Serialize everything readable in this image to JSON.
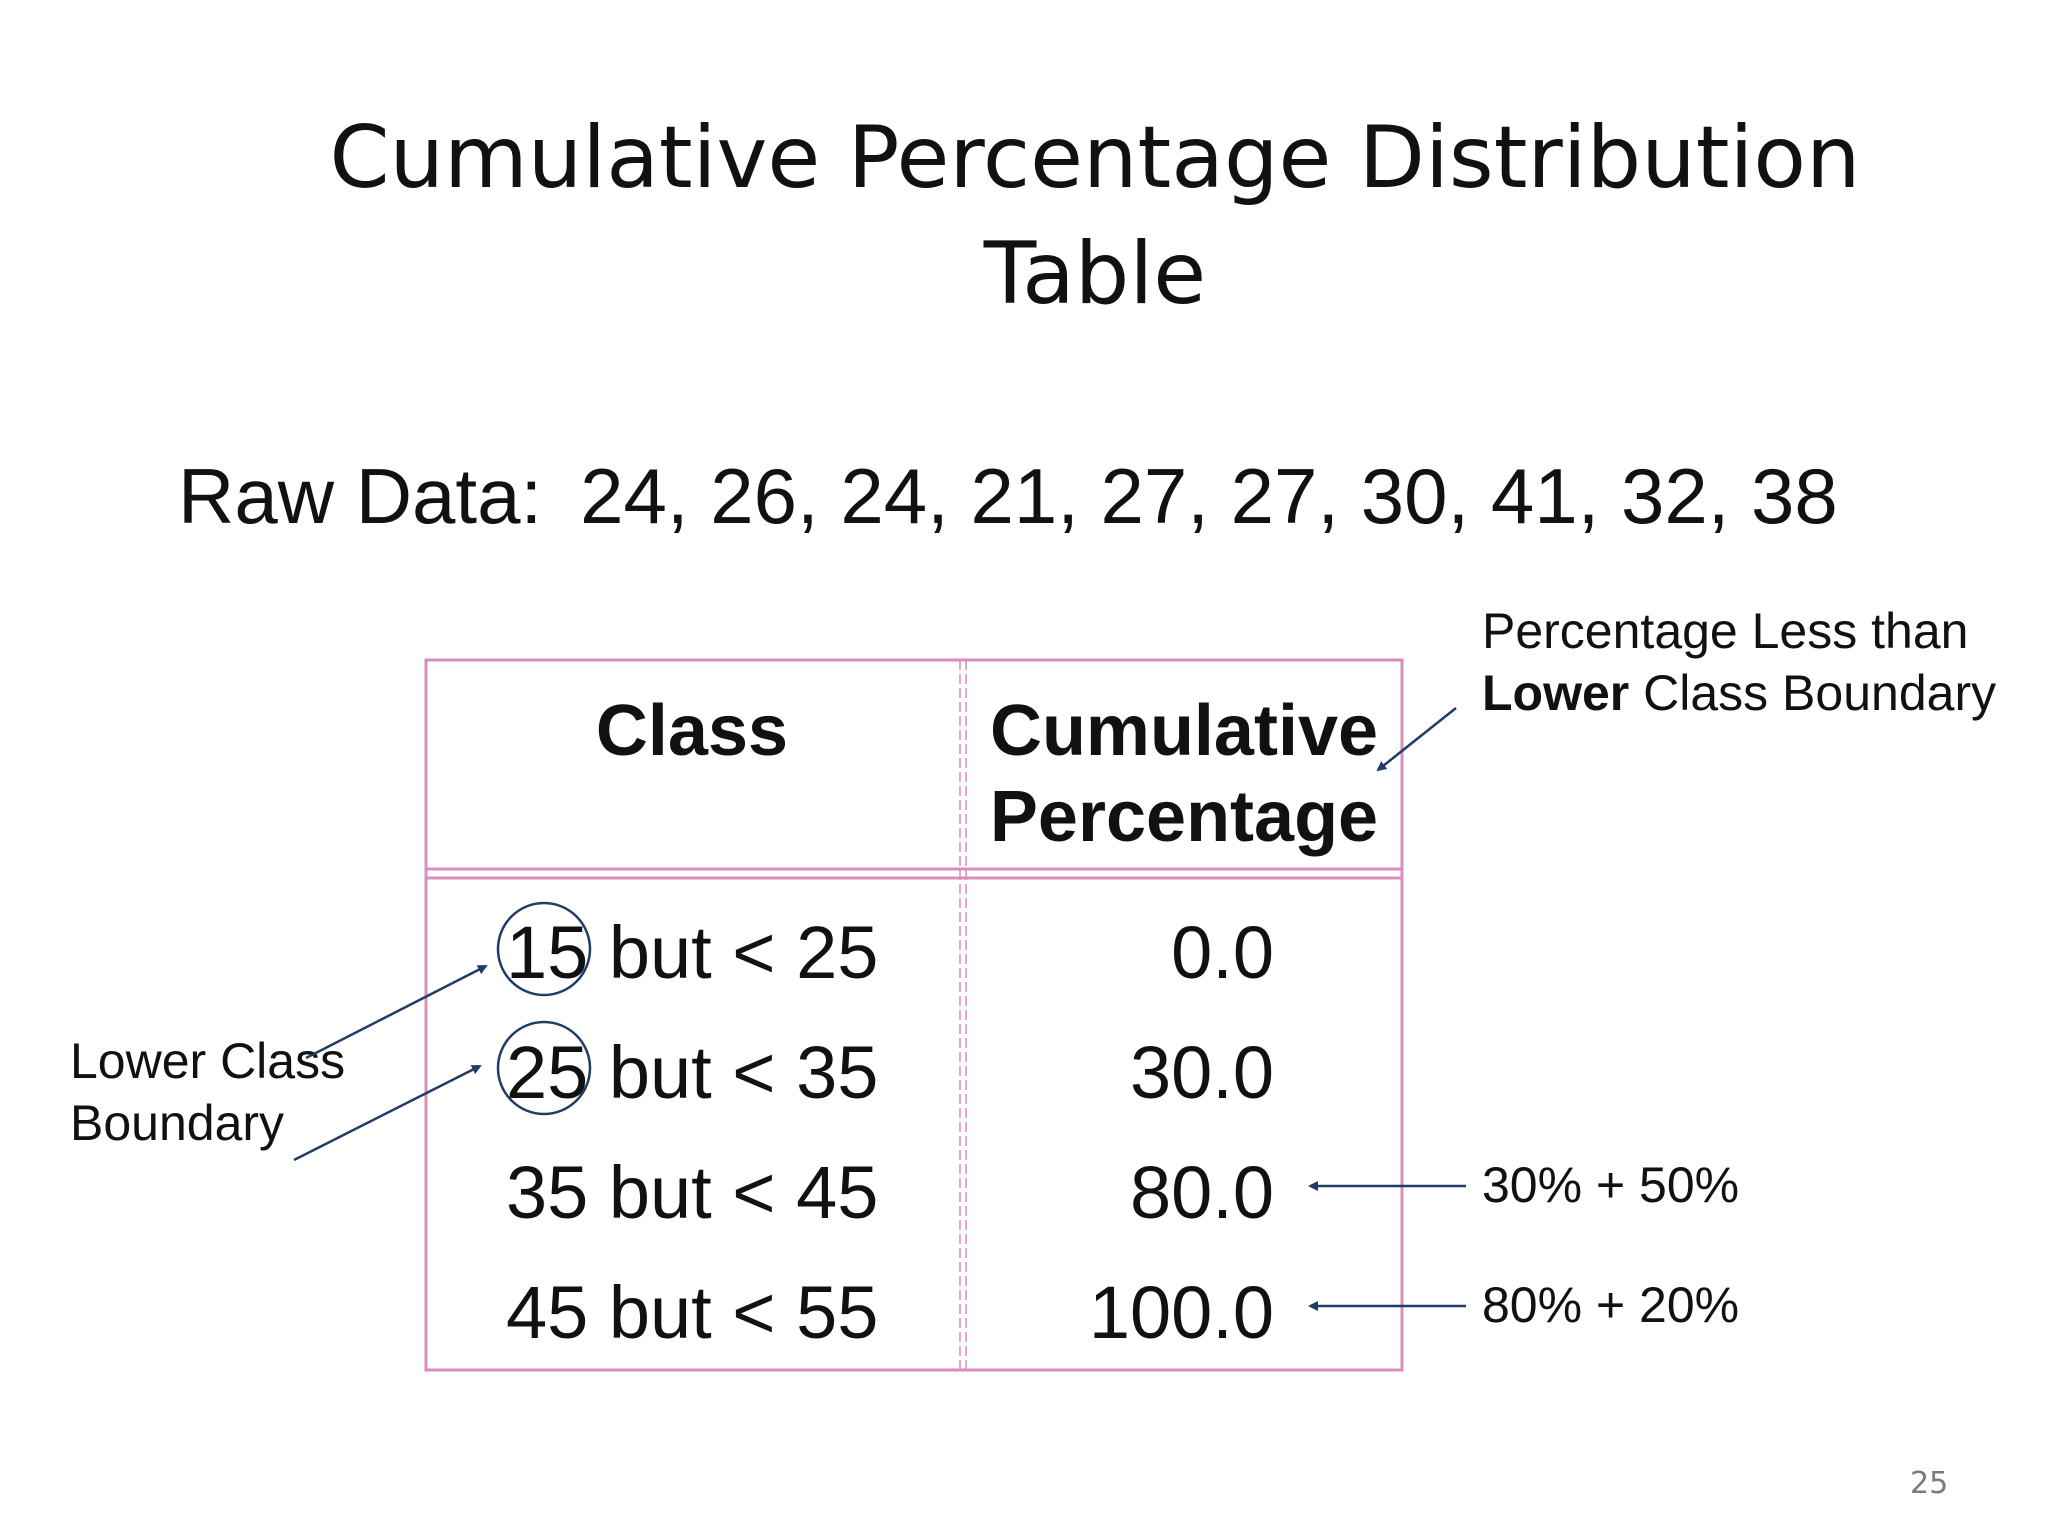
{
  "title_line1": "Cumulative Percentage Distribution",
  "title_line2": "Table",
  "raw_data": {
    "label": "Raw Data:",
    "values": "24, 26, 24, 21, 27, 27, 30, 41, 32, 38"
  },
  "table": {
    "headers": {
      "class": "Class",
      "cumulative_line1": "Cumulative",
      "cumulative_line2": "Percentage"
    },
    "rows": [
      {
        "class": "15 but < 25",
        "cumulative": "0.0"
      },
      {
        "class": "25 but < 35",
        "cumulative": "30.0"
      },
      {
        "class": "35 but < 45",
        "cumulative": "80.0"
      },
      {
        "class": "45 but < 55",
        "cumulative": "100.0"
      }
    ]
  },
  "annotations": {
    "header_note_line1": "Percentage Less than",
    "header_note_bold": "Lower",
    "header_note_rest": " Class Boundary",
    "lower_boundary_line1": "Lower Class",
    "lower_boundary_line2": "Boundary",
    "row3_note": "30% + 50%",
    "row4_note": "80% + 20%"
  },
  "page_number": "25",
  "colors": {
    "table_border": "#d98cbf",
    "arrow": "#1f3d66"
  }
}
